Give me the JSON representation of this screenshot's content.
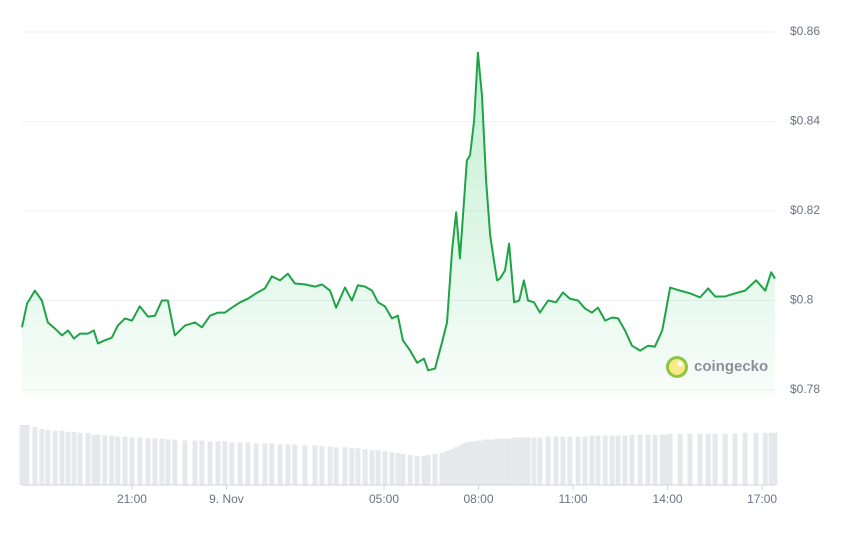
{
  "chart_data": {
    "type": "line",
    "brand": "coingecko",
    "color": "#1ea446",
    "grid": true,
    "xlim": [
      -6.49,
      17.41
    ],
    "xticks": [
      {
        "value": -3,
        "label": "21:00"
      },
      {
        "value": 0,
        "label": "9. Nov"
      },
      {
        "value": 5,
        "label": "05:00"
      },
      {
        "value": 8,
        "label": "08:00"
      },
      {
        "value": 11,
        "label": "11:00"
      },
      {
        "value": 14,
        "label": "14:00"
      },
      {
        "value": 17,
        "label": "17:00"
      }
    ],
    "ylim": [
      0.78,
      0.86
    ],
    "yticks": [
      {
        "value": 0.78,
        "label": "$0.78"
      },
      {
        "value": 0.8,
        "label": "$0.8"
      },
      {
        "value": 0.82,
        "label": "$0.82"
      },
      {
        "value": 0.84,
        "label": "$0.84"
      },
      {
        "value": 0.86,
        "label": "$0.86"
      }
    ],
    "x": [
      -6.49,
      -6.33,
      -6.08,
      -5.86,
      -5.67,
      -5.44,
      -5.22,
      -5.03,
      -4.84,
      -4.65,
      -4.4,
      -4.21,
      -4.08,
      -3.86,
      -3.64,
      -3.45,
      -3.22,
      -3.0,
      -2.75,
      -2.49,
      -2.27,
      -2.05,
      -1.86,
      -1.64,
      -1.32,
      -1.0,
      -0.78,
      -0.52,
      -0.27,
      -0.05,
      0.17,
      0.43,
      0.68,
      0.94,
      1.22,
      1.44,
      1.7,
      1.95,
      2.17,
      2.49,
      2.81,
      3.03,
      3.29,
      3.48,
      3.76,
      3.98,
      4.17,
      4.4,
      4.62,
      4.81,
      5.03,
      5.25,
      5.44,
      5.6,
      5.83,
      6.05,
      6.27,
      6.4,
      6.62,
      6.84,
      7.0,
      7.16,
      7.29,
      7.41,
      7.54,
      7.63,
      7.73,
      7.86,
      7.98,
      8.11,
      8.24,
      8.37,
      8.49,
      8.59,
      8.68,
      8.84,
      8.97,
      9.13,
      9.29,
      9.44,
      9.57,
      9.76,
      9.95,
      10.21,
      10.46,
      10.68,
      10.9,
      11.16,
      11.38,
      11.6,
      11.79,
      12.02,
      12.24,
      12.43,
      12.65,
      12.87,
      13.13,
      13.38,
      13.6,
      13.83,
      13.95,
      14.08,
      14.4,
      14.71,
      15.03,
      15.29,
      15.51,
      15.83,
      16.14,
      16.46,
      16.81,
      17.1,
      17.29,
      17.41
    ],
    "values": [
      0.794,
      0.7993,
      0.8022,
      0.8,
      0.7951,
      0.7937,
      0.7922,
      0.7933,
      0.7915,
      0.7926,
      0.7926,
      0.7933,
      0.7904,
      0.7911,
      0.7917,
      0.7944,
      0.796,
      0.7955,
      0.7987,
      0.7964,
      0.7966,
      0.8,
      0.8,
      0.7922,
      0.7944,
      0.7951,
      0.794,
      0.7966,
      0.7973,
      0.7973,
      0.7984,
      0.7996,
      0.8004,
      0.8016,
      0.8027,
      0.8054,
      0.8045,
      0.806,
      0.8038,
      0.8036,
      0.8031,
      0.8036,
      0.8022,
      0.7984,
      0.8029,
      0.8,
      0.8034,
      0.8031,
      0.8022,
      0.7996,
      0.7987,
      0.796,
      0.7966,
      0.7911,
      0.7888,
      0.7861,
      0.787,
      0.7844,
      0.7848,
      0.7906,
      0.7951,
      0.8112,
      0.8197,
      0.8094,
      0.8223,
      0.8313,
      0.8324,
      0.8402,
      0.8554,
      0.8458,
      0.8268,
      0.8145,
      0.8089,
      0.8045,
      0.8049,
      0.8067,
      0.8127,
      0.7996,
      0.8,
      0.8045,
      0.8,
      0.7996,
      0.7973,
      0.8,
      0.7996,
      0.8018,
      0.8004,
      0.8,
      0.7982,
      0.7973,
      0.7984,
      0.7955,
      0.7962,
      0.796,
      0.7933,
      0.7899,
      0.7888,
      0.7899,
      0.7897,
      0.7933,
      0.7978,
      0.8029,
      0.8022,
      0.8016,
      0.8007,
      0.8027,
      0.8009,
      0.8009,
      0.8016,
      0.8022,
      0.8045,
      0.8022,
      0.8063,
      0.8049
    ],
    "volume": {
      "color": "#e6e8ec",
      "values": [
        62,
        62,
        60,
        58,
        57,
        56,
        56,
        55,
        55,
        54,
        54,
        52,
        52,
        51,
        51,
        50,
        50,
        49,
        49,
        48,
        48,
        48,
        47,
        47,
        46,
        46,
        46,
        45,
        45,
        45,
        44,
        44,
        44,
        43,
        43,
        43,
        42,
        42,
        42,
        41,
        41,
        40,
        40,
        39,
        39,
        38,
        38,
        37,
        36,
        36,
        35,
        34,
        33,
        32,
        31,
        30,
        30,
        31,
        32,
        33,
        35,
        37,
        39,
        41,
        43,
        44,
        45,
        45,
        46,
        46,
        47,
        47,
        47,
        48,
        48,
        48,
        48,
        49,
        49,
        49,
        49,
        49,
        49,
        50,
        50,
        50,
        50,
        50,
        50,
        51,
        51,
        51,
        51,
        51,
        51,
        52,
        52,
        52,
        52,
        52,
        52,
        53,
        53,
        53,
        53,
        53,
        53,
        53,
        53,
        54,
        54,
        54,
        54,
        54
      ]
    }
  }
}
